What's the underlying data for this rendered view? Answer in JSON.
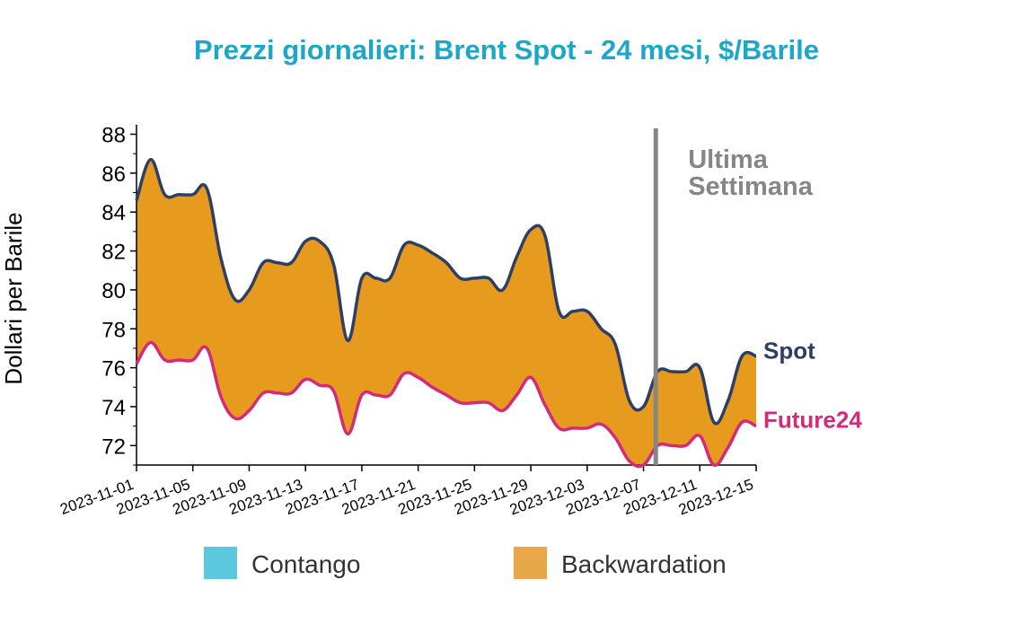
{
  "chart_data": {
    "type": "area",
    "title": "Prezzi giornalieri: Brent Spot - 24 mesi, $/Barile",
    "ylabel": "Dollari per Barile",
    "xlabel": "",
    "ylim": [
      71,
      88.3
    ],
    "yticks": [
      72,
      74,
      76,
      78,
      80,
      82,
      84,
      86,
      88
    ],
    "xlim": [
      "2023-11-01",
      "2023-12-15"
    ],
    "xticks": [
      "2023-11-01",
      "2023-11-05",
      "2023-11-09",
      "2023-11-13",
      "2023-11-17",
      "2023-11-21",
      "2023-11-25",
      "2023-11-29",
      "2023-12-03",
      "2023-12-07",
      "2023-12-11",
      "2023-12-15"
    ],
    "x": [
      "2023-11-01",
      "2023-11-02",
      "2023-11-03",
      "2023-11-04",
      "2023-11-05",
      "2023-11-06",
      "2023-11-07",
      "2023-11-08",
      "2023-11-09",
      "2023-11-10",
      "2023-11-11",
      "2023-11-12",
      "2023-11-13",
      "2023-11-14",
      "2023-11-15",
      "2023-11-16",
      "2023-11-17",
      "2023-11-18",
      "2023-11-19",
      "2023-11-20",
      "2023-11-21",
      "2023-11-22",
      "2023-11-23",
      "2023-11-24",
      "2023-11-25",
      "2023-11-26",
      "2023-11-27",
      "2023-11-28",
      "2023-11-29",
      "2023-11-30",
      "2023-12-01",
      "2023-12-02",
      "2023-12-03",
      "2023-12-04",
      "2023-12-05",
      "2023-12-06",
      "2023-12-07",
      "2023-12-08",
      "2023-12-09",
      "2023-12-10",
      "2023-12-11",
      "2023-12-12",
      "2023-12-13",
      "2023-12-14",
      "2023-12-15"
    ],
    "series": [
      {
        "name": "Spot",
        "color": "#2e3f66",
        "values": [
          84.6,
          86.7,
          84.9,
          84.9,
          84.9,
          85.2,
          81.6,
          79.5,
          80.0,
          81.4,
          81.4,
          81.4,
          82.5,
          82.5,
          81.3,
          77.4,
          80.6,
          80.6,
          80.6,
          82.3,
          82.3,
          81.9,
          81.4,
          80.6,
          80.6,
          80.6,
          80.0,
          81.7,
          83.1,
          82.8,
          78.9,
          78.9,
          78.9,
          78.0,
          77.2,
          74.3,
          74.0,
          75.8,
          75.8,
          75.8,
          76.0,
          73.2,
          74.3,
          76.6,
          76.6
        ]
      },
      {
        "name": "Future24",
        "color": "#d42a7a",
        "values": [
          76.2,
          77.3,
          76.4,
          76.4,
          76.4,
          77.0,
          74.5,
          73.4,
          73.8,
          74.7,
          74.7,
          74.7,
          75.4,
          75.1,
          74.8,
          72.6,
          74.6,
          74.6,
          74.6,
          75.7,
          75.5,
          75.0,
          74.6,
          74.2,
          74.2,
          74.2,
          73.8,
          74.6,
          75.5,
          74.1,
          72.9,
          72.9,
          72.9,
          73.1,
          72.4,
          71.2,
          71.0,
          72.0,
          72.0,
          72.0,
          72.5,
          71.0,
          71.9,
          73.2,
          73.0
        ]
      }
    ],
    "fill": {
      "backwardation_color": "#e69a1e",
      "contango_color": "#5bc8dd"
    },
    "annotation": {
      "line1": "Ultima",
      "line2": "Settimana",
      "x": "2023-12-08",
      "color": "#868686"
    },
    "end_labels": {
      "spot": "Spot",
      "future": "Future24"
    },
    "legend": [
      {
        "label": "Contango",
        "color": "#5bc8dd"
      },
      {
        "label": "Backwardation",
        "color": "#e8a84a"
      }
    ],
    "legend_position": "bottom"
  }
}
